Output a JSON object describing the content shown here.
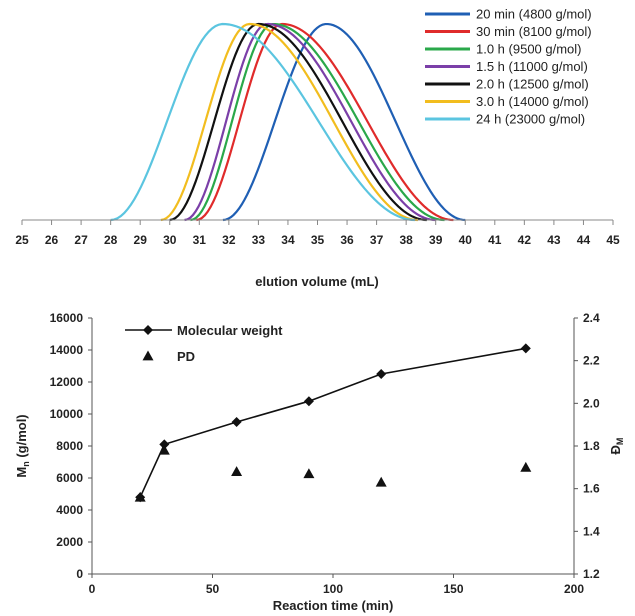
{
  "chart_data": [
    {
      "type": "line",
      "xlabel": "elution volume (mL)",
      "xlim": [
        25,
        45
      ],
      "x_ticks": [
        25,
        26,
        27,
        28,
        29,
        30,
        31,
        32,
        33,
        34,
        35,
        36,
        37,
        38,
        39,
        40,
        41,
        42,
        43,
        44,
        45
      ],
      "legend_position": "top-right",
      "series": [
        {
          "name": "20 min (4800 g/mol)",
          "color": "#1f5fb4",
          "range": [
            31.8,
            40.0
          ],
          "peak": 35.3
        },
        {
          "name": "30 min (8100 g/mol)",
          "color": "#e02b2b",
          "range": [
            30.9,
            39.6
          ],
          "peak": 33.8
        },
        {
          "name": "1.0 h (9500 g/mol)",
          "color": "#2aa84a",
          "range": [
            30.7,
            39.3
          ],
          "peak": 33.5
        },
        {
          "name": "1.5 h (11000 g/mol)",
          "color": "#7b3fa8",
          "range": [
            30.5,
            39.0
          ],
          "peak": 33.3
        },
        {
          "name": "2.0 h (12500 g/mol)",
          "color": "#111111",
          "range": [
            30.0,
            38.7
          ],
          "peak": 33.0
        },
        {
          "name": "3.0 h (14000 g/mol)",
          "color": "#f2bd1e",
          "range": [
            29.7,
            38.4
          ],
          "peak": 32.7
        },
        {
          "name": "24 h (23000 g/mol)",
          "color": "#5bc5e0",
          "range": [
            28.0,
            38.3
          ],
          "peak": 31.8
        }
      ]
    },
    {
      "type": "scatter",
      "xlabel": "Reaction time (min)",
      "ylabel_main": "M",
      "ylabel_sub": "n",
      "ylabel_rest": " (g/mol)",
      "y2label_main": "Đ",
      "y2label_sub": "M",
      "xlim": [
        0,
        200
      ],
      "ylim": [
        0,
        16000
      ],
      "y2lim": [
        1.2,
        2.4
      ],
      "x_ticks": [
        0,
        50,
        100,
        150,
        200
      ],
      "y_ticks": [
        0,
        2000,
        4000,
        6000,
        8000,
        10000,
        12000,
        14000,
        16000
      ],
      "y2_ticks": [
        "1.2",
        "1.4",
        "1.6",
        "1.8",
        "2.0",
        "2.2",
        "2.4"
      ],
      "legend_position": "top-left",
      "series": [
        {
          "name": "Molecular weight",
          "marker": "diamond",
          "line": true,
          "axis": "left",
          "x": [
            20,
            30,
            60,
            90,
            120,
            180
          ],
          "y": [
            4800,
            8100,
            9500,
            10800,
            12500,
            14100
          ]
        },
        {
          "name": "PD",
          "marker": "triangle",
          "line": false,
          "axis": "right",
          "x": [
            20,
            30,
            60,
            90,
            120,
            180
          ],
          "y": [
            1.56,
            1.78,
            1.68,
            1.67,
            1.63,
            1.7
          ]
        }
      ]
    }
  ]
}
